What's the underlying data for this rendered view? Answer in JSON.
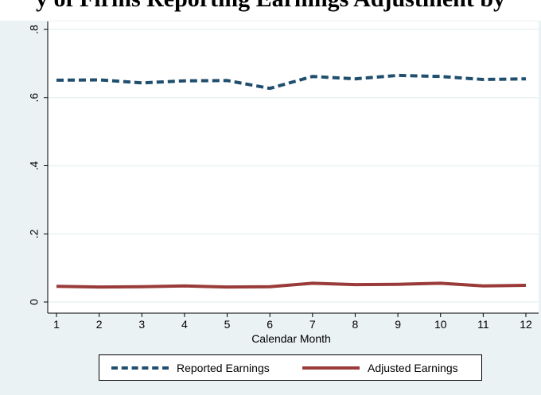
{
  "title": "y of Firms Reporting Earnings Adjustment by",
  "colors": {
    "reported": "#1f4e6e",
    "adjusted": "#9a3b3a",
    "grid": "#eaf2f3",
    "background": "#eaf2f3",
    "plot_area": "#ffffff"
  },
  "chart_data": {
    "type": "line",
    "xlabel": "Calendar Month",
    "ylabel": "",
    "xlim": [
      1,
      12
    ],
    "ylim": [
      0,
      0.8
    ],
    "x_ticks": [
      "1",
      "2",
      "3",
      "4",
      "5",
      "6",
      "7",
      "8",
      "9",
      "10",
      "11",
      "12"
    ],
    "y_ticks": [
      {
        "value": 0,
        "label": "0"
      },
      {
        "value": 0.2,
        "label": ".2"
      },
      {
        "value": 0.4,
        "label": ".4"
      },
      {
        "value": 0.6,
        "label": ".6"
      },
      {
        "value": 0.8,
        "label": ".8"
      }
    ],
    "grid": true,
    "legend_position": "bottom",
    "x": [
      1,
      2,
      3,
      4,
      5,
      6,
      7,
      8,
      9,
      10,
      11,
      12
    ],
    "series": [
      {
        "name": "Reported Earnings",
        "style": "dashed",
        "color": "#1f4e6e",
        "values": [
          0.651,
          0.652,
          0.643,
          0.649,
          0.65,
          0.627,
          0.662,
          0.655,
          0.665,
          0.662,
          0.653,
          0.655
        ]
      },
      {
        "name": "Adjusted Earnings",
        "style": "solid",
        "color": "#9a3b3a",
        "values": [
          0.046,
          0.044,
          0.045,
          0.047,
          0.044,
          0.045,
          0.055,
          0.051,
          0.052,
          0.055,
          0.047,
          0.049
        ]
      }
    ]
  }
}
